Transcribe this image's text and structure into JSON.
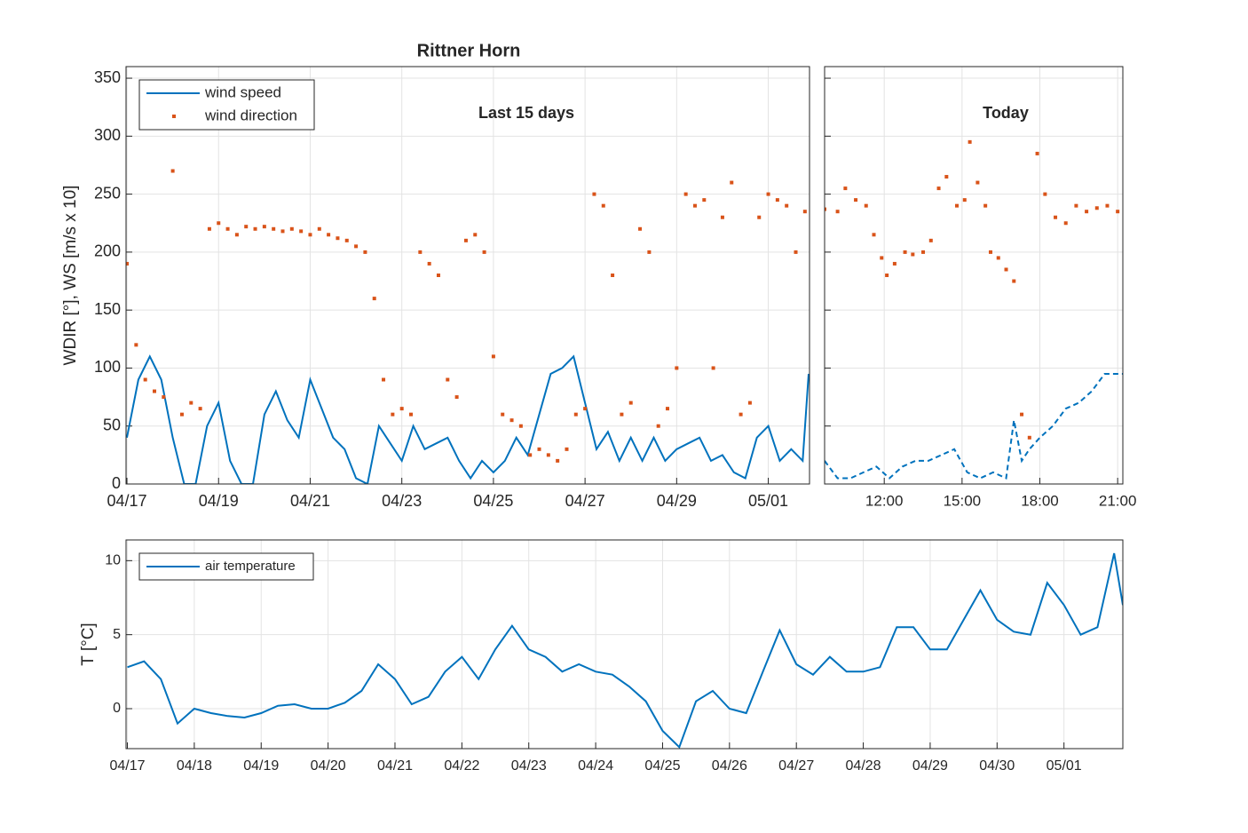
{
  "title": "Rittner Horn",
  "chart_data": [
    {
      "type": "combo",
      "annotation": "Last 15 days",
      "ylabel": "WDIR [°], WS [m/s x 10]",
      "xlim": [
        -0.02,
        14.9
      ],
      "ylim": [
        0,
        360
      ],
      "grid": true,
      "legend": "upper left",
      "xticks": [
        {
          "value": 0,
          "label": "04/17"
        },
        {
          "value": 2,
          "label": "04/19"
        },
        {
          "value": 4,
          "label": "04/21"
        },
        {
          "value": 6,
          "label": "04/23"
        },
        {
          "value": 8,
          "label": "04/25"
        },
        {
          "value": 10,
          "label": "04/27"
        },
        {
          "value": 12,
          "label": "04/29"
        },
        {
          "value": 14,
          "label": "05/01"
        }
      ],
      "yticks": [
        0,
        50,
        100,
        150,
        200,
        250,
        300,
        350
      ],
      "series": [
        {
          "name": "wind speed",
          "color": "#0072bd",
          "style": "line",
          "x": [
            0,
            0.25,
            0.5,
            0.75,
            1,
            1.25,
            1.5,
            1.75,
            2,
            2.25,
            2.5,
            2.75,
            3,
            3.25,
            3.5,
            3.75,
            4,
            4.25,
            4.5,
            4.75,
            5,
            5.25,
            5.5,
            5.75,
            6,
            6.25,
            6.5,
            6.75,
            7,
            7.25,
            7.5,
            7.75,
            8,
            8.25,
            8.5,
            8.75,
            9,
            9.25,
            9.5,
            9.75,
            10,
            10.25,
            10.5,
            10.75,
            11,
            11.25,
            11.5,
            11.75,
            12,
            12.25,
            12.5,
            12.75,
            13,
            13.25,
            13.5,
            13.75,
            14,
            14.25,
            14.5,
            14.75,
            14.88
          ],
          "values": [
            40,
            90,
            110,
            90,
            40,
            0,
            0,
            50,
            70,
            20,
            0,
            0,
            60,
            80,
            55,
            40,
            90,
            65,
            40,
            30,
            5,
            0,
            50,
            35,
            20,
            50,
            30,
            35,
            40,
            20,
            5,
            20,
            10,
            20,
            40,
            25,
            60,
            95,
            100,
            110,
            70,
            30,
            45,
            20,
            40,
            20,
            40,
            20,
            30,
            35,
            40,
            20,
            25,
            10,
            5,
            40,
            50,
            20,
            30,
            20,
            95
          ]
        },
        {
          "name": "wind direction",
          "color": "#d95319",
          "style": "markers",
          "x": [
            0,
            0.2,
            0.4,
            0.6,
            0.8,
            1,
            1.2,
            1.4,
            1.6,
            1.8,
            2,
            2.2,
            2.4,
            2.6,
            2.8,
            3,
            3.2,
            3.4,
            3.6,
            3.8,
            4,
            4.2,
            4.4,
            4.6,
            4.8,
            5,
            5.2,
            5.4,
            5.6,
            5.8,
            6,
            6.2,
            6.4,
            6.6,
            6.8,
            7,
            7.2,
            7.4,
            7.6,
            7.8,
            8,
            8.2,
            8.4,
            8.6,
            8.8,
            9,
            9.2,
            9.4,
            9.6,
            9.8,
            10,
            10.2,
            10.4,
            10.6,
            10.8,
            11,
            11.2,
            11.4,
            11.6,
            11.8,
            12,
            12.2,
            12.4,
            12.6,
            12.8,
            13,
            13.2,
            13.4,
            13.6,
            13.8,
            14,
            14.2,
            14.4,
            14.6,
            14.8
          ],
          "values": [
            190,
            120,
            90,
            80,
            75,
            270,
            60,
            70,
            65,
            220,
            225,
            220,
            215,
            222,
            220,
            222,
            220,
            218,
            220,
            218,
            215,
            220,
            215,
            212,
            210,
            205,
            200,
            160,
            90,
            60,
            65,
            60,
            200,
            190,
            180,
            90,
            75,
            210,
            215,
            200,
            110,
            60,
            55,
            50,
            25,
            30,
            25,
            20,
            30,
            60,
            65,
            250,
            240,
            180,
            60,
            70,
            220,
            200,
            50,
            65,
            100,
            250,
            240,
            245,
            100,
            230,
            260,
            60,
            70,
            230,
            250,
            245,
            240,
            200,
            235
          ]
        }
      ]
    },
    {
      "type": "combo",
      "annotation": "Today",
      "xlim": [
        9.7,
        21.2
      ],
      "ylim": [
        0,
        360
      ],
      "grid": true,
      "xticks": [
        {
          "value": 12,
          "label": "12:00"
        },
        {
          "value": 15,
          "label": "15:00"
        },
        {
          "value": 18,
          "label": "18:00"
        },
        {
          "value": 21,
          "label": "21:00"
        }
      ],
      "yticks": [
        0,
        50,
        100,
        150,
        200,
        250,
        300,
        350
      ],
      "series": [
        {
          "color": "#0072bd",
          "style": "dashed",
          "x": [
            9.7,
            10.2,
            10.7,
            11.2,
            11.7,
            12.2,
            12.7,
            13.2,
            13.7,
            14.2,
            14.7,
            15.2,
            15.7,
            16.2,
            16.7,
            17,
            17.3,
            17.6,
            18,
            18.5,
            19,
            19.5,
            20,
            20.5,
            21.2
          ],
          "values": [
            20,
            5,
            5,
            10,
            15,
            5,
            15,
            20,
            20,
            25,
            30,
            10,
            5,
            10,
            5,
            55,
            20,
            30,
            40,
            50,
            65,
            70,
            80,
            95,
            95
          ]
        },
        {
          "color": "#d95319",
          "style": "markers",
          "x": [
            9.7,
            10.2,
            10.5,
            10.9,
            11.3,
            11.6,
            11.9,
            12.1,
            12.4,
            12.8,
            13.1,
            13.5,
            13.8,
            14.1,
            14.4,
            14.8,
            15.1,
            15.3,
            15.6,
            15.9,
            16.1,
            16.4,
            16.7,
            17,
            17.3,
            17.6,
            17.9,
            18.2,
            18.6,
            19,
            19.4,
            19.8,
            20.2,
            20.6,
            21
          ],
          "values": [
            237,
            235,
            255,
            245,
            240,
            215,
            195,
            180,
            190,
            200,
            198,
            200,
            210,
            255,
            265,
            240,
            245,
            295,
            260,
            240,
            200,
            195,
            185,
            175,
            60,
            40,
            285,
            250,
            230,
            225,
            240,
            235,
            238,
            240,
            235
          ]
        }
      ]
    },
    {
      "type": "line",
      "ylabel": "T [°C]",
      "xlim": [
        -0.02,
        14.88
      ],
      "ylim": [
        -2.7,
        11.4
      ],
      "grid": true,
      "legend": "upper left",
      "xticks": [
        {
          "value": 0,
          "label": "04/17"
        },
        {
          "value": 1,
          "label": "04/18"
        },
        {
          "value": 2,
          "label": "04/19"
        },
        {
          "value": 3,
          "label": "04/20"
        },
        {
          "value": 4,
          "label": "04/21"
        },
        {
          "value": 5,
          "label": "04/22"
        },
        {
          "value": 6,
          "label": "04/23"
        },
        {
          "value": 7,
          "label": "04/24"
        },
        {
          "value": 8,
          "label": "04/25"
        },
        {
          "value": 9,
          "label": "04/26"
        },
        {
          "value": 10,
          "label": "04/27"
        },
        {
          "value": 11,
          "label": "04/28"
        },
        {
          "value": 12,
          "label": "04/29"
        },
        {
          "value": 13,
          "label": "04/30"
        },
        {
          "value": 14,
          "label": "05/01"
        }
      ],
      "yticks": [
        0,
        5,
        10
      ],
      "series": [
        {
          "name": "air temperature",
          "color": "#0072bd",
          "style": "line",
          "x": [
            0,
            0.25,
            0.5,
            0.75,
            1,
            1.25,
            1.5,
            1.75,
            2,
            2.25,
            2.5,
            2.75,
            3,
            3.25,
            3.5,
            3.75,
            4,
            4.25,
            4.5,
            4.75,
            5,
            5.25,
            5.5,
            5.75,
            6,
            6.25,
            6.5,
            6.75,
            7,
            7.25,
            7.5,
            7.75,
            8,
            8.25,
            8.5,
            8.75,
            9,
            9.25,
            9.5,
            9.75,
            10,
            10.25,
            10.5,
            10.75,
            11,
            11.25,
            11.5,
            11.75,
            12,
            12.25,
            12.5,
            12.75,
            13,
            13.25,
            13.5,
            13.75,
            14,
            14.25,
            14.5,
            14.75,
            14.88
          ],
          "values": [
            2.8,
            3.2,
            2,
            -1,
            0,
            -0.3,
            -0.5,
            -0.6,
            -0.3,
            0.2,
            0.3,
            0,
            0,
            0.4,
            1.2,
            3,
            2,
            0.3,
            0.8,
            2.5,
            3.5,
            2,
            4,
            5.6,
            4,
            3.5,
            2.5,
            3,
            2.5,
            2.3,
            1.5,
            0.5,
            -1.5,
            -2.6,
            0.5,
            1.2,
            0,
            -0.3,
            2.5,
            5.3,
            3,
            2.3,
            3.5,
            2.5,
            2.5,
            2.8,
            5.5,
            5.5,
            4,
            4,
            6,
            8,
            6,
            5.2,
            5,
            8.5,
            7,
            5,
            5.5,
            10.5,
            7
          ]
        }
      ]
    }
  ]
}
